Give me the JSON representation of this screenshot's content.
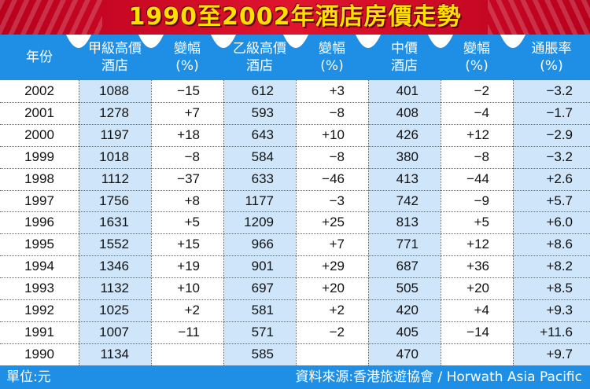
{
  "chart_data": {
    "type": "table",
    "title": "1990至2002年酒店房價走勢",
    "columns": [
      {
        "line1": "年份",
        "line2": ""
      },
      {
        "line1": "甲級高價",
        "line2": "酒店"
      },
      {
        "line1": "變幅",
        "line2": "(%)"
      },
      {
        "line1": "乙級高價",
        "line2": "酒店"
      },
      {
        "line1": "變幅",
        "line2": "(%)"
      },
      {
        "line1": "中價",
        "line2": "酒店"
      },
      {
        "line1": "變幅",
        "line2": "(%)"
      },
      {
        "line1": "通脹率",
        "line2": "(%)"
      }
    ],
    "rows": [
      [
        "2002",
        "1088",
        "−15",
        "612",
        "+3",
        "401",
        "−2",
        "−3.2"
      ],
      [
        "2001",
        "1278",
        "+7",
        "593",
        "−8",
        "408",
        "−4",
        "−1.7"
      ],
      [
        "2000",
        "1197",
        "+18",
        "643",
        "+10",
        "426",
        "+12",
        "−2.9"
      ],
      [
        "1999",
        "1018",
        "−8",
        "584",
        "−8",
        "380",
        "−8",
        "−3.2"
      ],
      [
        "1998",
        "1112",
        "−37",
        "633",
        "−46",
        "413",
        "−44",
        "+2.6"
      ],
      [
        "1997",
        "1756",
        "+8",
        "1177",
        "−3",
        "742",
        "−9",
        "+5.7"
      ],
      [
        "1996",
        "1631",
        "+5",
        "1209",
        "+25",
        "813",
        "+5",
        "+6.0"
      ],
      [
        "1995",
        "1552",
        "+15",
        "966",
        "+7",
        "771",
        "+12",
        "+8.6"
      ],
      [
        "1994",
        "1346",
        "+19",
        "901",
        "+29",
        "687",
        "+36",
        "+8.2"
      ],
      [
        "1993",
        "1132",
        "+10",
        "697",
        "+20",
        "505",
        "+20",
        "+8.5"
      ],
      [
        "1992",
        "1025",
        "+2",
        "581",
        "+2",
        "420",
        "+4",
        "+9.3"
      ],
      [
        "1991",
        "1007",
        "−11",
        "571",
        "−2",
        "405",
        "−14",
        "+11.6"
      ],
      [
        "1990",
        "1134",
        "",
        "585",
        "",
        "470",
        "",
        "+9.7"
      ]
    ],
    "unit_note": "單位:元",
    "source": "資料來源:香港旅遊協會 / Horwath Asia Pacific"
  },
  "colors": {
    "title_band": "#d4001f",
    "title_text": "#ffe000",
    "header_band": "#1f8fe6",
    "highlight_column": "#cfe6fa",
    "footer_band": "#1f8fe6"
  }
}
